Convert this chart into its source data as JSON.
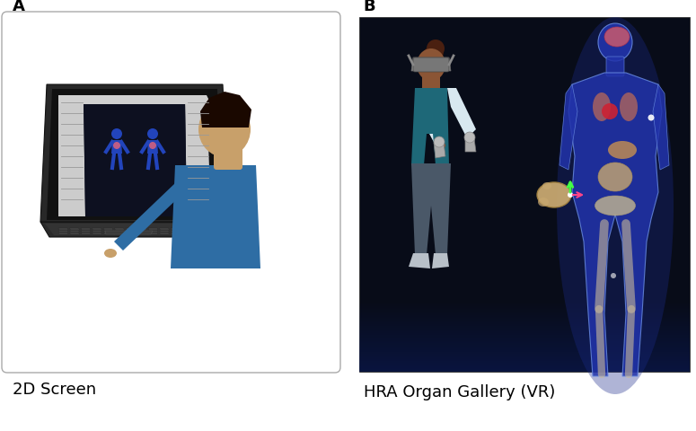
{
  "fig_width": 7.75,
  "fig_height": 4.81,
  "dpi": 100,
  "bg_color": "#ffffff",
  "panel_a_label": "A",
  "panel_b_label": "B",
  "panel_a_caption": "2D Screen",
  "panel_b_caption": "HRA Organ Gallery (VR)",
  "caption_fontsize": 13,
  "label_fontsize": 13,
  "panel_b_bg": "#080c18",
  "person_skin": "#c8a06a",
  "person_hair": "#1a0800",
  "person_shirt_blue": "#2e6da4",
  "vr_person_skin": "#8B5535",
  "vr_hair": "#3a1a08",
  "vr_vest_color": "#1e6878",
  "vr_shirt_color": "#d8e8f0",
  "vr_pants_color": "#4a5868",
  "vr_shoe_color": "#b8c0c8",
  "vh_body_color": "#2233aa",
  "vh_edge_color": "#6688dd",
  "organ_brain": "#c05870",
  "organ_lung": "#b86858",
  "organ_heart": "#cc2233",
  "organ_liver": "#c89050",
  "organ_intestine": "#c8a870",
  "organ_pelvis": "#d0c090",
  "organ_bone": "#c8b898"
}
